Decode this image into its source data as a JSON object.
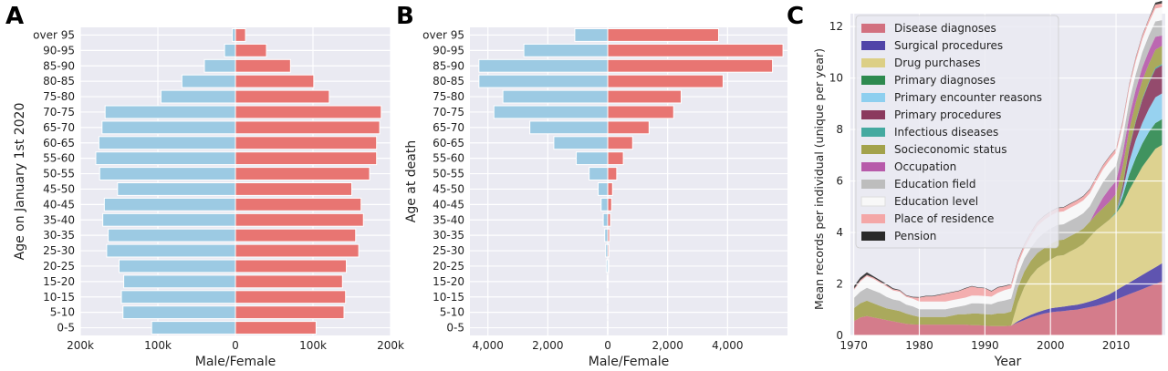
{
  "colors": {
    "male": "#9ccae3",
    "female": "#e87572",
    "plot_bg": "#eaeaf2",
    "grid": "#ffffff"
  },
  "chart_data": [
    {
      "panel": "A",
      "type": "bar",
      "orientation": "horizontal",
      "xlabel": "Male/Female",
      "ylabel": "Age on January 1st 2020",
      "categories": [
        "0-5",
        "5-10",
        "10-15",
        "15-20",
        "20-25",
        "25-30",
        "30-35",
        "35-40",
        "40-45",
        "45-50",
        "50-55",
        "55-60",
        "60-65",
        "65-70",
        "70-75",
        "75-80",
        "80-85",
        "85-90",
        "90-95",
        "over 95"
      ],
      "xlim": [
        -200000,
        200000
      ],
      "xticks": [
        -200000,
        -100000,
        0,
        100000,
        200000
      ],
      "xtick_labels": [
        "200k",
        "100k",
        "0",
        "100k",
        "200k"
      ],
      "grid": true,
      "series": [
        {
          "color_key": "male",
          "values": [
            -108000,
            -145000,
            -147000,
            -144000,
            -150000,
            -166000,
            -164000,
            -171000,
            -169000,
            -152000,
            -175000,
            -180000,
            -176000,
            -172000,
            -168000,
            -96000,
            -69000,
            -40000,
            -14000,
            -4000
          ]
        },
        {
          "color_key": "female",
          "values": [
            104000,
            140000,
            142000,
            138000,
            143000,
            159000,
            155000,
            165000,
            162000,
            150000,
            173000,
            182000,
            182000,
            186000,
            188000,
            121000,
            101000,
            71000,
            40000,
            13000
          ]
        }
      ]
    },
    {
      "panel": "B",
      "type": "bar",
      "orientation": "horizontal",
      "xlabel": "Male/Female",
      "ylabel": "Age at death",
      "categories": [
        "0-5",
        "5-10",
        "10-15",
        "15-20",
        "20-25",
        "25-30",
        "30-35",
        "35-40",
        "40-45",
        "45-50",
        "50-55",
        "55-60",
        "60-65",
        "65-70",
        "70-75",
        "75-80",
        "80-85",
        "85-90",
        "90-95",
        "over 95"
      ],
      "xlim": [
        -4600,
        6000
      ],
      "xticks": [
        -4000,
        -2000,
        0,
        2000,
        4000
      ],
      "xtick_labels": [
        "4,000",
        "2,000",
        "0",
        "2,000",
        "4,000"
      ],
      "grid": true,
      "series": [
        {
          "color_key": "male",
          "values": [
            -12,
            -8,
            -10,
            -20,
            -50,
            -70,
            -100,
            -150,
            -220,
            -320,
            -620,
            -1050,
            -1800,
            -2600,
            -3800,
            -3500,
            -4300,
            -4300,
            -2800,
            -1100
          ]
        },
        {
          "color_key": "female",
          "values": [
            8,
            6,
            7,
            12,
            30,
            40,
            60,
            90,
            130,
            160,
            300,
            520,
            830,
            1380,
            2200,
            2450,
            3850,
            5500,
            5850,
            3700
          ]
        }
      ]
    },
    {
      "panel": "C",
      "type": "area",
      "stacked": true,
      "xlabel": "Year",
      "ylabel": "Mean records per individual  (unique per year)",
      "xlim": [
        1969.5,
        2017.5
      ],
      "ylim": [
        0,
        12.5
      ],
      "xticks": [
        1970,
        1980,
        1990,
        2000,
        2010
      ],
      "yticks": [
        0,
        2,
        4,
        6,
        8,
        10,
        12
      ],
      "grid": true,
      "legend_position": "top-left",
      "x": [
        1970,
        1971,
        1972,
        1973,
        1974,
        1975,
        1976,
        1977,
        1978,
        1979,
        1980,
        1981,
        1982,
        1983,
        1984,
        1985,
        1986,
        1987,
        1988,
        1989,
        1990,
        1991,
        1992,
        1993,
        1994,
        1995,
        1996,
        1997,
        1998,
        1999,
        2000,
        2001,
        2002,
        2003,
        2004,
        2005,
        2006,
        2007,
        2008,
        2009,
        2010,
        2011,
        2012,
        2013,
        2014,
        2015,
        2016,
        2017
      ],
      "series": [
        {
          "name": "Disease diagnoses",
          "color": "#d2707f",
          "values": [
            0.55,
            0.7,
            0.75,
            0.7,
            0.65,
            0.6,
            0.55,
            0.5,
            0.45,
            0.43,
            0.42,
            0.42,
            0.42,
            0.42,
            0.42,
            0.42,
            0.42,
            0.42,
            0.4,
            0.4,
            0.38,
            0.36,
            0.36,
            0.36,
            0.38,
            0.5,
            0.6,
            0.7,
            0.78,
            0.85,
            0.9,
            0.93,
            0.95,
            0.98,
            1.0,
            1.05,
            1.1,
            1.15,
            1.22,
            1.3,
            1.4,
            1.5,
            1.6,
            1.7,
            1.8,
            1.9,
            2.0,
            2.1
          ]
        },
        {
          "name": "Surgical procedures",
          "color": "#5044a8",
          "values": [
            0,
            0,
            0,
            0,
            0,
            0,
            0,
            0,
            0,
            0,
            0,
            0,
            0,
            0,
            0,
            0,
            0,
            0,
            0,
            0,
            0,
            0,
            0,
            0,
            0,
            0.05,
            0.08,
            0.1,
            0.12,
            0.13,
            0.15,
            0.16,
            0.17,
            0.18,
            0.19,
            0.2,
            0.22,
            0.25,
            0.28,
            0.3,
            0.35,
            0.4,
            0.45,
            0.5,
            0.55,
            0.6,
            0.65,
            0.7
          ]
        },
        {
          "name": "Drug purchases",
          "color": "#dccf85",
          "values": [
            0,
            0,
            0,
            0,
            0,
            0,
            0,
            0,
            0,
            0,
            0,
            0,
            0,
            0,
            0,
            0,
            0,
            0,
            0,
            0,
            0,
            0,
            0,
            0,
            0,
            0.7,
            1.2,
            1.5,
            1.7,
            1.8,
            1.9,
            2.0,
            2.0,
            2.1,
            2.2,
            2.3,
            2.5,
            2.7,
            2.8,
            2.9,
            3.0,
            3.2,
            3.6,
            3.9,
            4.2,
            4.4,
            4.6,
            4.6
          ]
        },
        {
          "name": "Primary diagnoses",
          "color": "#2e8a4f",
          "values": [
            0,
            0,
            0,
            0,
            0,
            0,
            0,
            0,
            0,
            0,
            0,
            0,
            0,
            0,
            0,
            0,
            0,
            0,
            0,
            0,
            0,
            0,
            0,
            0,
            0,
            0,
            0,
            0,
            0,
            0,
            0,
            0,
            0,
            0,
            0,
            0,
            0,
            0,
            0,
            0,
            0,
            0.3,
            0.6,
            0.8,
            0.9,
            1.0,
            1.0,
            1.0
          ]
        },
        {
          "name": "Primary encounter reasons",
          "color": "#8ecfef",
          "values": [
            0,
            0,
            0,
            0,
            0,
            0,
            0,
            0,
            0,
            0,
            0,
            0,
            0,
            0,
            0,
            0,
            0,
            0,
            0,
            0,
            0,
            0,
            0,
            0,
            0,
            0,
            0,
            0,
            0,
            0,
            0,
            0,
            0,
            0,
            0,
            0,
            0,
            0,
            0,
            0,
            0,
            0.2,
            0.5,
            0.7,
            0.8,
            0.9,
            1.0,
            1.0
          ]
        },
        {
          "name": "Primary procedures",
          "color": "#8b3a5e",
          "values": [
            0,
            0,
            0,
            0,
            0,
            0,
            0,
            0,
            0,
            0,
            0,
            0,
            0,
            0,
            0,
            0,
            0,
            0,
            0,
            0,
            0,
            0,
            0,
            0,
            0,
            0,
            0,
            0,
            0,
            0,
            0,
            0,
            0,
            0,
            0,
            0,
            0,
            0,
            0,
            0,
            0,
            0.2,
            0.5,
            0.7,
            0.9,
            1.0,
            1.1,
            1.1
          ]
        },
        {
          "name": "Infectious diseases",
          "color": "#45aaa0",
          "values": [
            0,
            0,
            0,
            0,
            0,
            0,
            0,
            0,
            0,
            0,
            0,
            0,
            0,
            0,
            0,
            0,
            0,
            0,
            0,
            0,
            0,
            0,
            0,
            0,
            0,
            0,
            0,
            0,
            0,
            0,
            0,
            0,
            0,
            0,
            0,
            0,
            0,
            0,
            0,
            0,
            0.05,
            0.05,
            0.05,
            0.05,
            0.05,
            0.05,
            0.05,
            0.05
          ]
        },
        {
          "name": "Socieconomic status",
          "color": "#a3a24b",
          "values": [
            0.5,
            0.55,
            0.6,
            0.55,
            0.5,
            0.45,
            0.45,
            0.45,
            0.4,
            0.35,
            0.3,
            0.3,
            0.3,
            0.3,
            0.3,
            0.35,
            0.4,
            0.4,
            0.45,
            0.45,
            0.45,
            0.45,
            0.5,
            0.5,
            0.55,
            0.6,
            0.6,
            0.6,
            0.6,
            0.6,
            0.6,
            0.6,
            0.6,
            0.6,
            0.6,
            0.6,
            0.6,
            0.6,
            0.65,
            0.7,
            0.7,
            0.7,
            0.7,
            0.7,
            0.7,
            0.7,
            0.7,
            0.7
          ]
        },
        {
          "name": "Occupation",
          "color": "#b75aaa",
          "values": [
            0,
            0,
            0,
            0,
            0,
            0,
            0,
            0,
            0,
            0,
            0,
            0,
            0,
            0,
            0,
            0,
            0,
            0,
            0,
            0,
            0,
            0,
            0,
            0,
            0,
            0,
            0,
            0,
            0,
            0,
            0,
            0,
            0,
            0,
            0,
            0,
            0,
            0.2,
            0.4,
            0.5,
            0.5,
            0.5,
            0.5,
            0.5,
            0.5,
            0.5,
            0.5,
            0.4
          ]
        },
        {
          "name": "Education field",
          "color": "#bdbdbd",
          "values": [
            0.4,
            0.45,
            0.5,
            0.5,
            0.5,
            0.45,
            0.4,
            0.4,
            0.35,
            0.35,
            0.3,
            0.3,
            0.3,
            0.3,
            0.3,
            0.3,
            0.3,
            0.35,
            0.4,
            0.4,
            0.4,
            0.4,
            0.45,
            0.5,
            0.5,
            0.5,
            0.5,
            0.5,
            0.55,
            0.6,
            0.6,
            0.6,
            0.6,
            0.6,
            0.6,
            0.6,
            0.6,
            0.6,
            0.6,
            0.6,
            0.6,
            0.6,
            0.6,
            0.6,
            0.6,
            0.6,
            0.6,
            0.6
          ]
        },
        {
          "name": "Education level",
          "color": "#f8f8f8",
          "values": [
            0.3,
            0.4,
            0.45,
            0.45,
            0.4,
            0.4,
            0.35,
            0.35,
            0.3,
            0.3,
            0.3,
            0.3,
            0.3,
            0.3,
            0.3,
            0.3,
            0.3,
            0.3,
            0.3,
            0.3,
            0.3,
            0.3,
            0.35,
            0.4,
            0.4,
            0.4,
            0.4,
            0.45,
            0.5,
            0.5,
            0.5,
            0.5,
            0.5,
            0.5,
            0.5,
            0.5,
            0.5,
            0.5,
            0.5,
            0.5,
            0.5,
            0.5,
            0.5,
            0.5,
            0.5,
            0.5,
            0.5,
            0.5
          ]
        },
        {
          "name": "Place of residence",
          "color": "#f4a7a7",
          "values": [
            0.05,
            0.05,
            0.05,
            0.05,
            0.05,
            0.05,
            0.05,
            0.05,
            0.05,
            0.05,
            0.15,
            0.2,
            0.2,
            0.25,
            0.3,
            0.3,
            0.3,
            0.35,
            0.35,
            0.3,
            0.3,
            0.2,
            0.2,
            0.15,
            0.15,
            0.15,
            0.15,
            0.15,
            0.15,
            0.15,
            0.15,
            0.15,
            0.15,
            0.15,
            0.15,
            0.15,
            0.15,
            0.15,
            0.15,
            0.15,
            0.15,
            0.15,
            0.15,
            0.15,
            0.15,
            0.15,
            0.15,
            0.15
          ]
        },
        {
          "name": "Pension",
          "color": "#2a2a2a",
          "values": [
            0.1,
            0.1,
            0.1,
            0.05,
            0.05,
            0.05,
            0.03,
            0.02,
            0.02,
            0.02,
            0.02,
            0.02,
            0.02,
            0.02,
            0.02,
            0.02,
            0.02,
            0.02,
            0.02,
            0.02,
            0.02,
            0.02,
            0.02,
            0.02,
            0.02,
            0.02,
            0.02,
            0.02,
            0.02,
            0.02,
            0.02,
            0.02,
            0.02,
            0.02,
            0.02,
            0.02,
            0.02,
            0.02,
            0.02,
            0.02,
            0.02,
            0.02,
            0.02,
            0.02,
            0.02,
            0.02,
            0.08,
            0.1
          ]
        }
      ]
    }
  ]
}
